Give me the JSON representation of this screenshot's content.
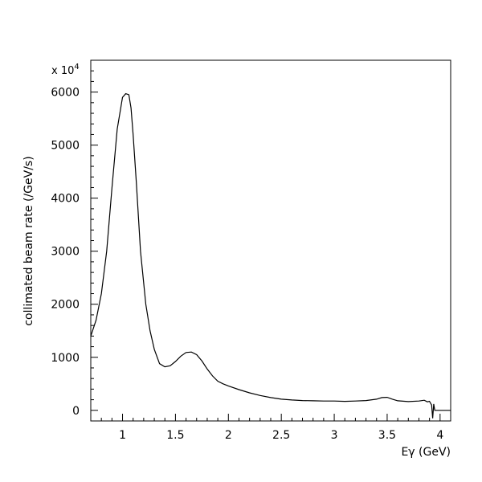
{
  "chart_data": {
    "type": "line",
    "title": "",
    "xlabel": "Eγ (GeV)",
    "ylabel": "collimated beam rate (/GeV/s)",
    "y_multiplier": "x 10",
    "y_multiplier_exp": "4",
    "xlim": [
      0.7,
      4.1
    ],
    "ylim": [
      -200,
      6600
    ],
    "x_ticks_major": [
      1,
      1.5,
      2,
      2.5,
      3,
      3.5,
      4
    ],
    "x_tick_labels": [
      "1",
      "1.5",
      "2",
      "2.5",
      "3",
      "3.5",
      "4"
    ],
    "y_ticks_major": [
      0,
      1000,
      2000,
      3000,
      4000,
      5000,
      6000
    ],
    "y_tick_labels": [
      "0",
      "1000",
      "2000",
      "3000",
      "4000",
      "5000",
      "6000"
    ],
    "grid": false,
    "series": [
      {
        "x": [
          0.7,
          0.75,
          0.8,
          0.85,
          0.9,
          0.95,
          1.0,
          1.03,
          1.06,
          1.08,
          1.1,
          1.13,
          1.17,
          1.22,
          1.26,
          1.3,
          1.35,
          1.4,
          1.45,
          1.5,
          1.55,
          1.6,
          1.65,
          1.7,
          1.75,
          1.8,
          1.85,
          1.9,
          1.95,
          2.0,
          2.1,
          2.2,
          2.3,
          2.4,
          2.5,
          2.6,
          2.7,
          2.8,
          2.9,
          3.0,
          3.1,
          3.2,
          3.3,
          3.4,
          3.45,
          3.5,
          3.55,
          3.6,
          3.7,
          3.8,
          3.85,
          3.88,
          3.9,
          3.92,
          3.93,
          3.94,
          3.95,
          3.96,
          4.0,
          4.05,
          4.1
        ],
        "y": [
          1400,
          1700,
          2200,
          3000,
          4200,
          5300,
          5900,
          5970,
          5950,
          5700,
          5200,
          4300,
          3000,
          2000,
          1500,
          1150,
          880,
          820,
          840,
          920,
          1020,
          1090,
          1100,
          1050,
          930,
          780,
          650,
          550,
          500,
          460,
          390,
          330,
          280,
          240,
          210,
          195,
          185,
          180,
          175,
          175,
          170,
          175,
          185,
          210,
          240,
          245,
          210,
          180,
          165,
          175,
          190,
          160,
          170,
          100,
          -150,
          120,
          0,
          0,
          0,
          0,
          0
        ]
      }
    ]
  }
}
